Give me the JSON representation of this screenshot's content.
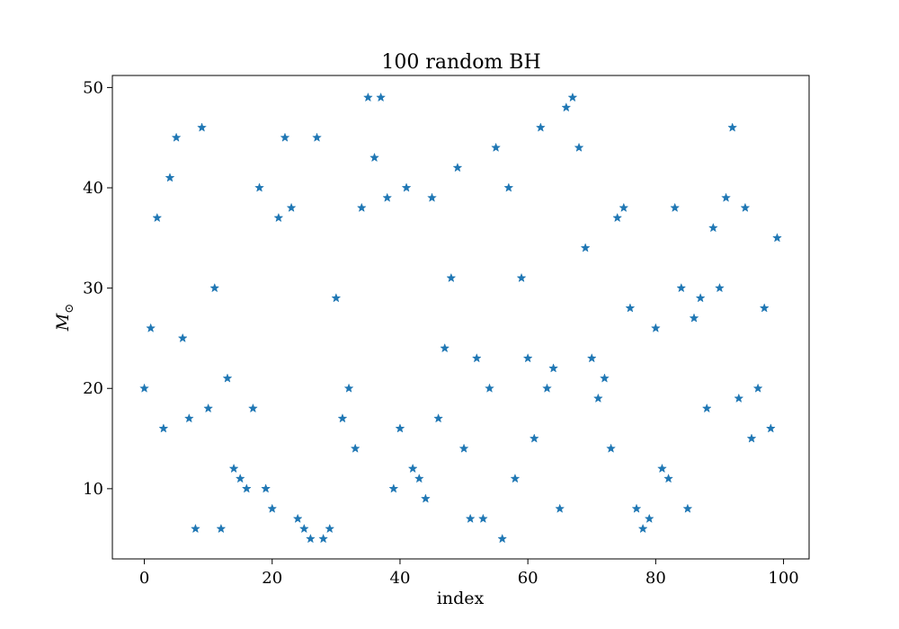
{
  "chart_data": {
    "type": "scatter",
    "title": "100 random BH",
    "xlabel": "index",
    "ylabel_main": "M",
    "ylabel_subscript": "⊙",
    "xlim": [
      -5,
      104
    ],
    "ylim": [
      3,
      51.2
    ],
    "xticks": [
      0,
      20,
      40,
      60,
      80,
      100
    ],
    "yticks": [
      10,
      20,
      30,
      40,
      50
    ],
    "grid": false,
    "marker": "star",
    "marker_color": "#1f77b4",
    "x": [
      0,
      1,
      2,
      3,
      4,
      5,
      6,
      7,
      8,
      9,
      10,
      11,
      12,
      13,
      14,
      15,
      16,
      17,
      18,
      19,
      20,
      21,
      22,
      23,
      24,
      25,
      26,
      27,
      28,
      29,
      30,
      31,
      32,
      33,
      34,
      35,
      36,
      37,
      38,
      39,
      40,
      41,
      42,
      43,
      44,
      45,
      46,
      47,
      48,
      49,
      50,
      51,
      52,
      53,
      54,
      55,
      56,
      57,
      58,
      59,
      60,
      61,
      62,
      63,
      64,
      65,
      66,
      67,
      68,
      69,
      70,
      71,
      72,
      73,
      74,
      75,
      76,
      77,
      78,
      79,
      80,
      81,
      82,
      83,
      84,
      85,
      86,
      87,
      88,
      89,
      90,
      91,
      92,
      93,
      94,
      95,
      96,
      97,
      98,
      99
    ],
    "y": [
      20,
      26,
      37,
      16,
      41,
      45,
      25,
      17,
      6,
      46,
      18,
      30,
      6,
      21,
      12,
      11,
      10,
      18,
      40,
      10,
      8,
      37,
      45,
      38,
      7,
      6,
      5,
      45,
      5,
      6,
      29,
      17,
      20,
      14,
      38,
      49,
      43,
      49,
      39,
      10,
      16,
      40,
      12,
      11,
      9,
      39,
      17,
      24,
      31,
      42,
      14,
      7,
      23,
      7,
      20,
      44,
      5,
      40,
      11,
      31,
      23,
      15,
      46,
      20,
      22,
      8,
      48,
      49,
      44,
      34,
      23,
      19,
      21,
      14,
      37,
      38,
      28,
      8,
      6,
      7,
      26,
      12,
      11,
      38,
      30,
      8,
      27,
      29,
      18,
      36,
      30,
      39,
      46,
      19,
      38,
      15,
      20,
      28,
      16,
      35
    ]
  }
}
